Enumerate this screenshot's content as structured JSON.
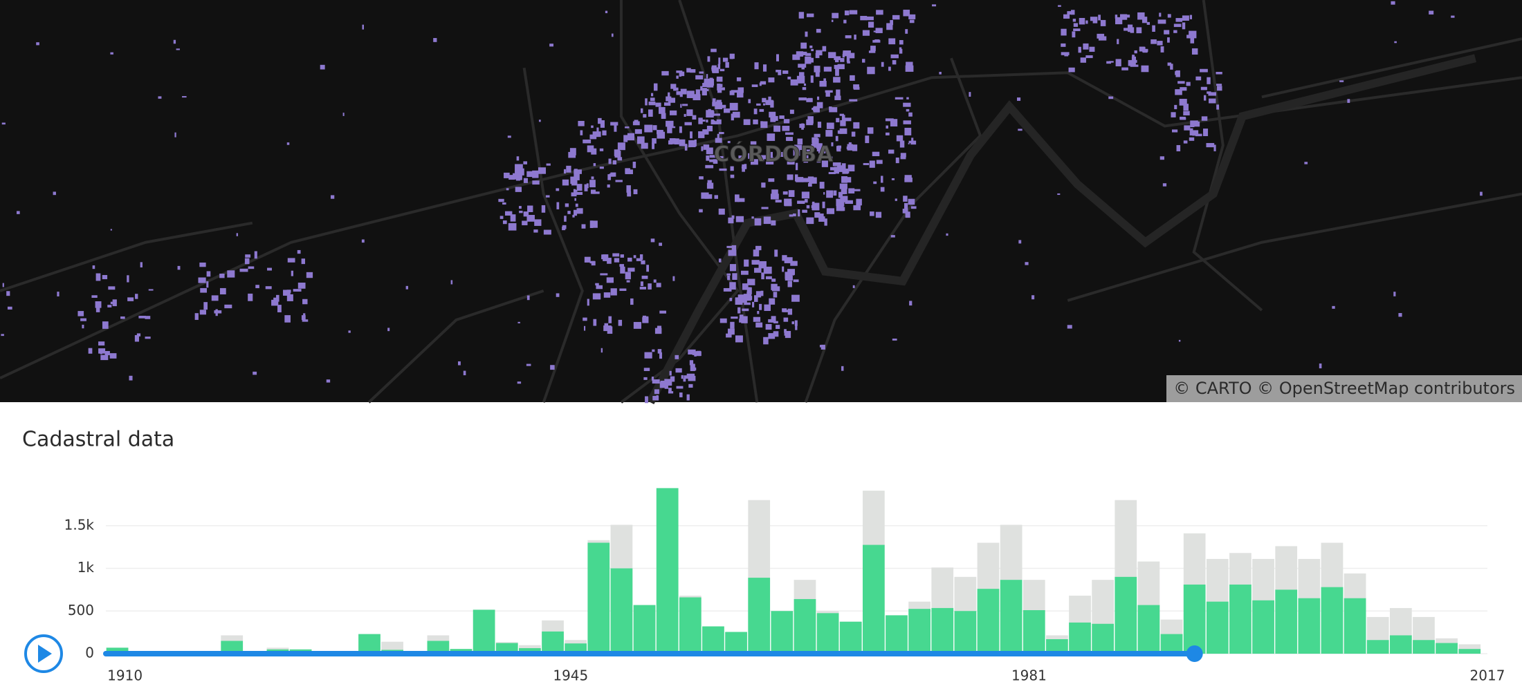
{
  "map": {
    "place_label": "CÓRDOBA",
    "attribution": "© CARTO © OpenStreetMap contributors"
  },
  "chart_data": {
    "type": "histogram",
    "title": "Cadastral data",
    "bins": [
      1908.5,
      1910.3,
      1912.1,
      1913.9,
      1915.7,
      1917.5,
      1919.3,
      1921.1,
      1922.9,
      1924.7,
      1926.5,
      1928.3,
      1930.1,
      1931.9,
      1933.7,
      1935.5,
      1937.3,
      1939.1,
      1940.9,
      1942.7,
      1944.5,
      1946.3,
      1948.1,
      1949.9,
      1951.7,
      1953.5,
      1955.3,
      1957.1,
      1958.9,
      1960.7,
      1962.5,
      1964.3,
      1966.1,
      1967.9,
      1969.7,
      1971.5,
      1973.3,
      1975.1,
      1976.9,
      1978.7,
      1980.5,
      1982.3,
      1984.1,
      1985.9,
      1987.7,
      1989.5,
      1991.3,
      1993.1,
      1994.9,
      1996.7,
      1998.5,
      2000.3,
      2002.1,
      2003.9,
      2005.7,
      2007.5,
      2009.3,
      2011.1,
      2012.9,
      2014.7,
      2016.5
    ],
    "series": [
      {
        "color": "#dfe1df",
        "values": [
          70,
          10,
          20,
          10,
          10,
          215,
          10,
          70,
          50,
          10,
          15,
          230,
          140,
          10,
          215,
          55,
          515,
          135,
          100,
          390,
          160,
          1330,
          1510,
          570,
          1940,
          680,
          320,
          255,
          1800,
          500,
          865,
          500,
          375,
          1910,
          450,
          610,
          1010,
          900,
          1300,
          1510,
          865,
          215,
          680,
          865,
          1800,
          1080,
          400,
          1410,
          1110,
          1180,
          1110,
          1260,
          1110,
          1300,
          940,
          430,
          535,
          430,
          180,
          110
        ]
      },
      {
        "color": "#47d890",
        "values": [
          70,
          10,
          20,
          10,
          10,
          150,
          10,
          50,
          50,
          10,
          15,
          230,
          45,
          10,
          150,
          55,
          515,
          125,
          65,
          260,
          120,
          1300,
          1000,
          570,
          1940,
          660,
          320,
          255,
          890,
          500,
          640,
          475,
          375,
          1275,
          450,
          525,
          535,
          500,
          760,
          865,
          510,
          170,
          365,
          350,
          900,
          570,
          230,
          810,
          610,
          810,
          625,
          750,
          650,
          780,
          650,
          160,
          215,
          160,
          125,
          55
        ]
      }
    ],
    "xlim": [
      1908.5,
      2017
    ],
    "xticks": [
      1910,
      1945,
      1981,
      2017
    ],
    "ylim": [
      0,
      2000
    ],
    "yticks": [
      0,
      500,
      {
        "value": 1000,
        "label": "1k"
      },
      {
        "value": 1500,
        "label": "1.5k"
      }
    ],
    "grid": true,
    "slider": 1994,
    "slider_color": "#1e88e5"
  }
}
